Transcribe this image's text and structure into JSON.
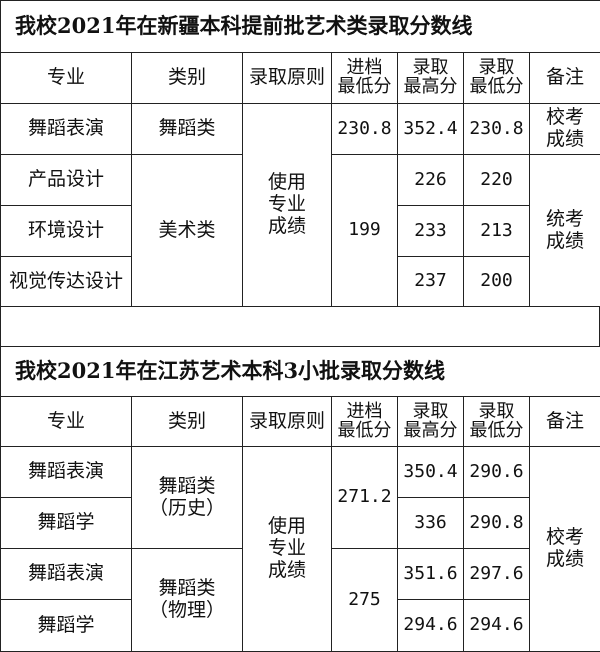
{
  "headers": {
    "major": "专业",
    "category": "类别",
    "principle": "录取原则",
    "enter_min": [
      "进档",
      "最低分"
    ],
    "admit_max": [
      "录取",
      "最高分"
    ],
    "admit_min": [
      "录取",
      "最低分"
    ],
    "note": "备注"
  },
  "table1": {
    "title": "我校2021年在新疆本科提前批艺术类录取分数线",
    "principle": [
      "使用",
      "专业",
      "成绩"
    ],
    "rows": [
      {
        "major": "舞蹈表演",
        "category": "舞蹈类",
        "enter_min": "230.8",
        "admit_max": "352.4",
        "admit_min": "230.8",
        "note": [
          "校考",
          "成绩"
        ]
      },
      {
        "major": "产品设计",
        "category": "美术类",
        "enter_min": "199",
        "admit_max": "226",
        "admit_min": "220",
        "note": [
          "统考",
          "成绩"
        ]
      },
      {
        "major": "环境设计",
        "admit_max": "233",
        "admit_min": "213"
      },
      {
        "major": "视觉传达设计",
        "admit_max": "237",
        "admit_min": "200"
      }
    ]
  },
  "table2": {
    "title": "我校2021年在江苏艺术本科3小批录取分数线",
    "principle": [
      "使用",
      "专业",
      "成绩"
    ],
    "note": [
      "校考",
      "成绩"
    ],
    "rows": [
      {
        "major": "舞蹈表演",
        "category": [
          "舞蹈类",
          "（历史）"
        ],
        "enter_min": "271.2",
        "admit_max": "350.4",
        "admit_min": "290.6"
      },
      {
        "major": "舞蹈学",
        "admit_max": "336",
        "admit_min": "290.8"
      },
      {
        "major": "舞蹈表演",
        "category": [
          "舞蹈类",
          "（物理）"
        ],
        "enter_min": "275",
        "admit_max": "351.6",
        "admit_min": "297.6"
      },
      {
        "major": "舞蹈学",
        "admit_max": "294.6",
        "admit_min": "294.6"
      }
    ]
  }
}
